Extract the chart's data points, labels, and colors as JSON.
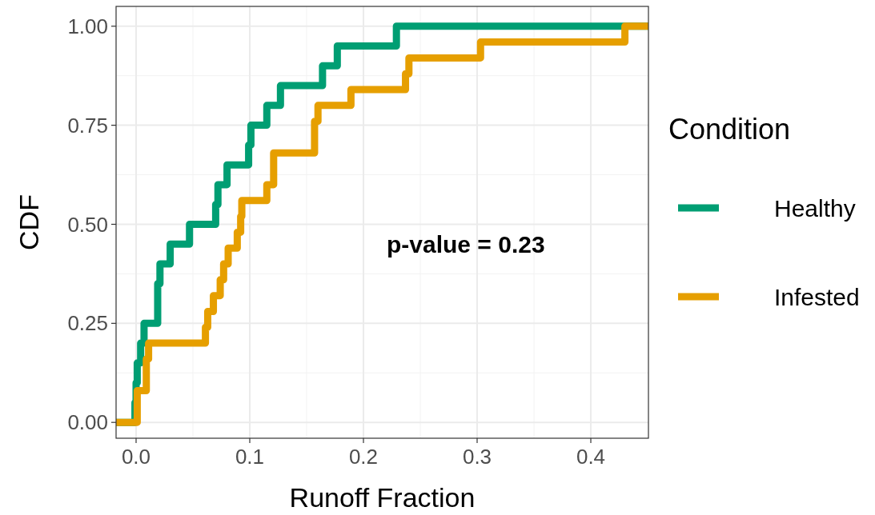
{
  "chart_data": {
    "type": "step",
    "xlabel": "Runoff Fraction",
    "ylabel": "CDF",
    "legend_title": "Condition",
    "legend": "right",
    "grid": true,
    "line_style": "solid",
    "marker": "none",
    "xlim": [
      -0.0176,
      0.4507
    ],
    "xticks": [
      {
        "value": 0,
        "label": "0.0"
      },
      {
        "value": 0.1,
        "label": "0.1"
      },
      {
        "value": 0.2,
        "label": "0.2"
      },
      {
        "value": 0.3,
        "label": "0.3"
      },
      {
        "value": 0.4,
        "label": "0.4"
      }
    ],
    "ylim": [
      -0.04,
      1.05
    ],
    "yticks": [
      {
        "value": 0,
        "label": "0.00"
      },
      {
        "value": 0.25,
        "label": "0.25"
      },
      {
        "value": 0.5,
        "label": "0.50"
      },
      {
        "value": 0.75,
        "label": "0.75"
      },
      {
        "value": 1,
        "label": "1.00"
      }
    ],
    "annotations": [
      "p-value = 0.23"
    ],
    "series": [
      {
        "name": "Healthy",
        "color": "#009e73",
        "x": [
          -0.0176,
          -0.001,
          0.0,
          0.001,
          0.004,
          0.007,
          0.019,
          0.021,
          0.03,
          0.047,
          0.07,
          0.072,
          0.08,
          0.099,
          0.101,
          0.115,
          0.127,
          0.164,
          0.177,
          0.229,
          0.4507
        ],
        "values": [
          0,
          0.05,
          0.1,
          0.15,
          0.2,
          0.25,
          0.35,
          0.4,
          0.45,
          0.5,
          0.55,
          0.6,
          0.65,
          0.7,
          0.75,
          0.8,
          0.85,
          0.9,
          0.95,
          1.0,
          1.0
        ]
      },
      {
        "name": "Infested",
        "color": "#e69f00",
        "x": [
          -0.0176,
          0.001,
          0.009,
          0.011,
          0.061,
          0.063,
          0.068,
          0.074,
          0.077,
          0.081,
          0.089,
          0.092,
          0.093,
          0.115,
          0.121,
          0.157,
          0.16,
          0.189,
          0.237,
          0.24,
          0.303,
          0.43,
          0.4507
        ],
        "values": [
          0,
          0.08,
          0.16,
          0.2,
          0.24,
          0.28,
          0.32,
          0.36,
          0.4,
          0.44,
          0.48,
          0.52,
          0.56,
          0.6,
          0.68,
          0.76,
          0.8,
          0.84,
          0.88,
          0.92,
          0.96,
          1.0,
          1.0
        ]
      }
    ]
  }
}
